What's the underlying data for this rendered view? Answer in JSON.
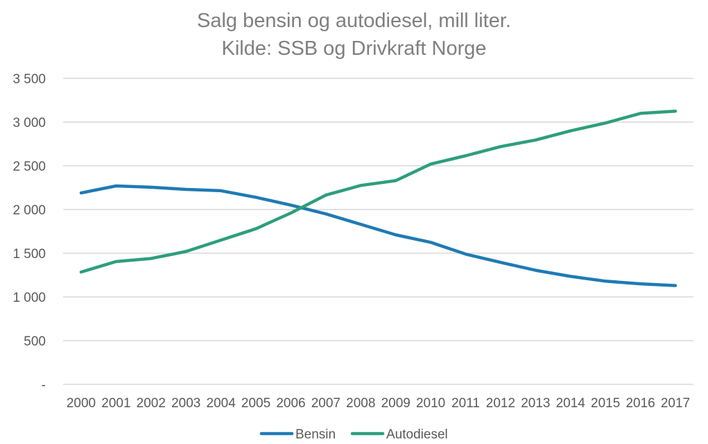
{
  "chart_data": {
    "type": "line",
    "title": "Salg bensin og autodiesel, mill liter.",
    "subtitle": "Kilde: SSB og Drivkraft Norge",
    "xlabel": "",
    "ylabel": "",
    "categories": [
      "2000",
      "2001",
      "2002",
      "2003",
      "2004",
      "2005",
      "2006",
      "2007",
      "2008",
      "2009",
      "2010",
      "2011",
      "2012",
      "2013",
      "2014",
      "2015",
      "2016",
      "2017"
    ],
    "ylim": [
      0,
      3500
    ],
    "yticks": [
      0,
      500,
      1000,
      1500,
      2000,
      2500,
      3000,
      3500
    ],
    "ytick_labels": [
      "-",
      "500",
      "1 000",
      "1 500",
      "2 000",
      "2 500",
      "3 000",
      "3 500"
    ],
    "grid": true,
    "legend_position": "bottom",
    "series": [
      {
        "name": "Bensin",
        "color": "#1f7ab5",
        "values": [
          2190,
          2270,
          2255,
          2230,
          2215,
          2140,
          2050,
          1950,
          1830,
          1710,
          1625,
          1490,
          1395,
          1305,
          1235,
          1180,
          1150,
          1130
        ]
      },
      {
        "name": "Autodiesel",
        "color": "#2e9e7c",
        "values": [
          1285,
          1405,
          1440,
          1520,
          1650,
          1780,
          1960,
          2165,
          2275,
          2330,
          2520,
          2615,
          2720,
          2795,
          2900,
          2990,
          3100,
          3125
        ]
      }
    ]
  }
}
